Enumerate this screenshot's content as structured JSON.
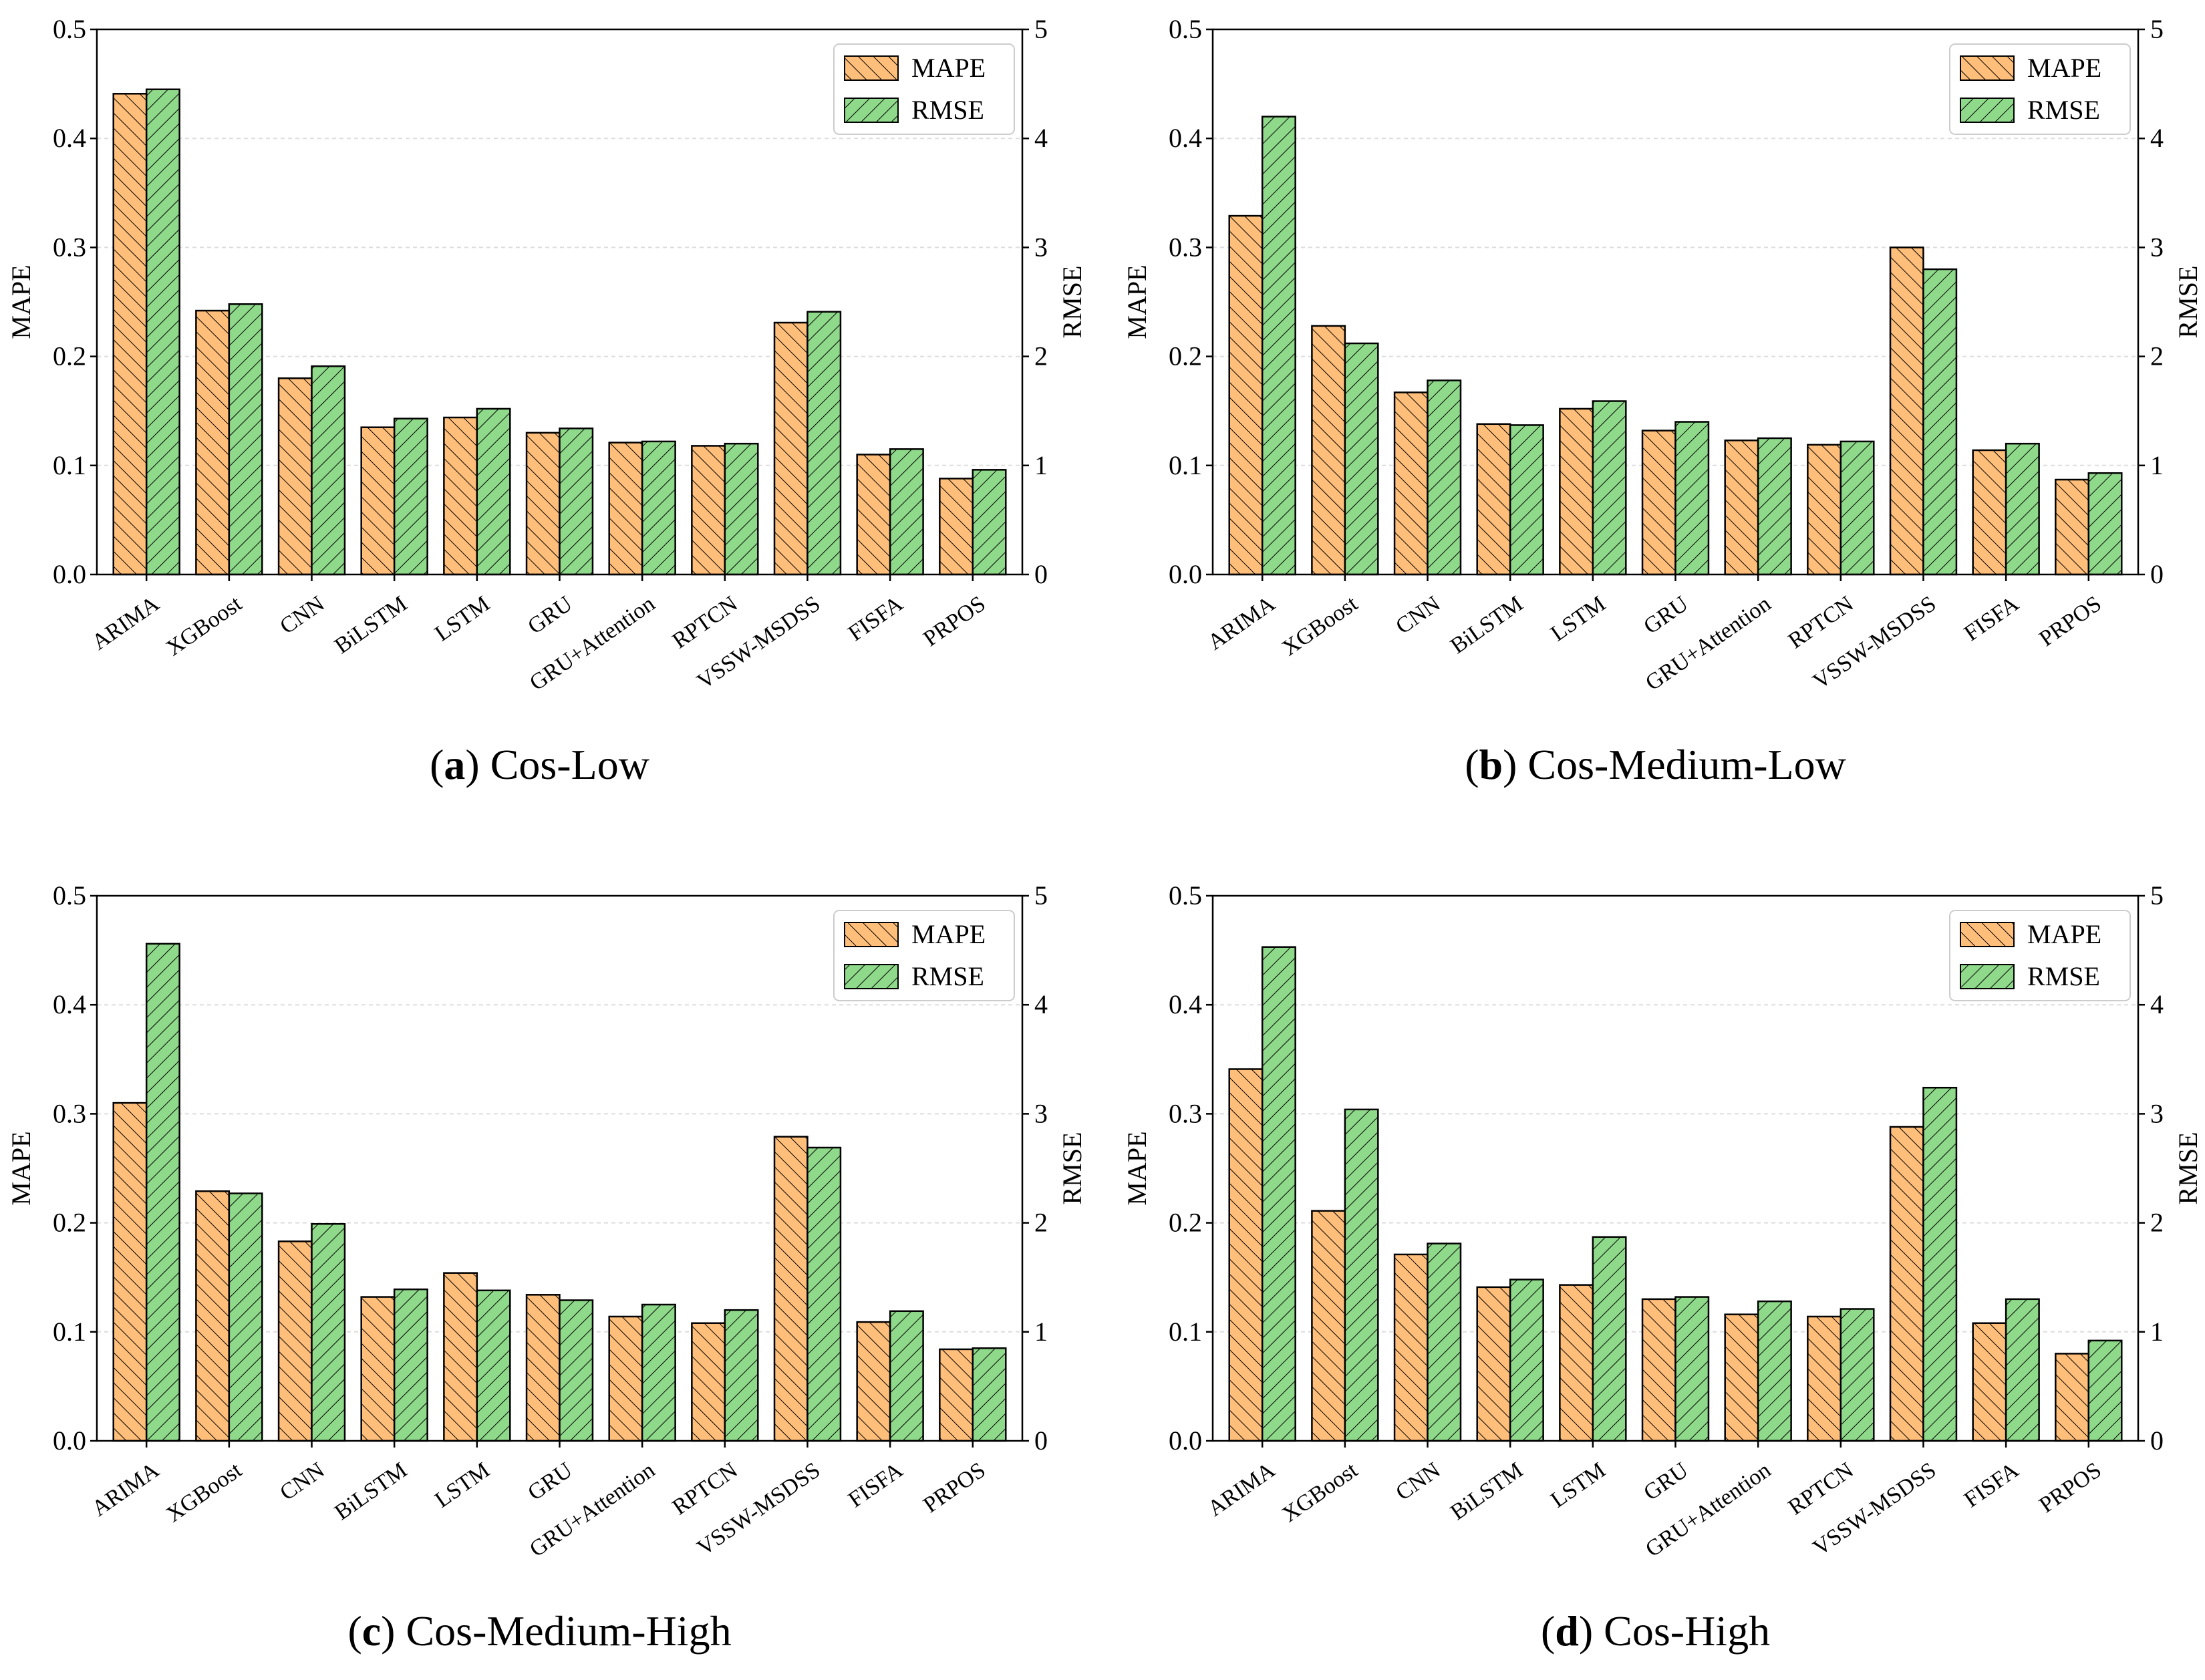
{
  "chart_data": [
    {
      "type": "bar",
      "caption_letter": "a",
      "caption_text": " Cos-Low",
      "ylabel": "MAPE",
      "y2label": "RMSE",
      "ylim": [
        0,
        0.5
      ],
      "y2lim": [
        0,
        5
      ],
      "yticks": [
        "0.0",
        "0.1",
        "0.2",
        "0.3",
        "0.4",
        "0.5"
      ],
      "y2ticks": [
        "0",
        "1",
        "2",
        "3",
        "4",
        "5"
      ],
      "grid": true,
      "legend_position": "top-right",
      "categories": [
        "ARIMA",
        "XGBoost",
        "CNN",
        "BiLSTM",
        "LSTM",
        "GRU",
        "GRU+Attention",
        "RPTCN",
        "VSSW-MSDSS",
        "FISFA",
        "PRPOS"
      ],
      "series": [
        {
          "name": "MAPE",
          "axis": "left",
          "color": "#FFBE7A",
          "hatch": "back",
          "values": [
            0.441,
            0.242,
            0.18,
            0.135,
            0.144,
            0.13,
            0.121,
            0.118,
            0.231,
            0.11,
            0.088
          ]
        },
        {
          "name": "RMSE",
          "axis": "right",
          "color": "#8FD98A",
          "hatch": "forward",
          "values": [
            4.45,
            2.48,
            1.91,
            1.43,
            1.52,
            1.34,
            1.22,
            1.2,
            2.41,
            1.15,
            0.96
          ]
        }
      ]
    },
    {
      "type": "bar",
      "caption_letter": "b",
      "caption_text": " Cos-Medium-Low",
      "ylabel": "MAPE",
      "y2label": "RMSE",
      "ylim": [
        0,
        0.5
      ],
      "y2lim": [
        0,
        5
      ],
      "yticks": [
        "0.0",
        "0.1",
        "0.2",
        "0.3",
        "0.4",
        "0.5"
      ],
      "y2ticks": [
        "0",
        "1",
        "2",
        "3",
        "4",
        "5"
      ],
      "grid": true,
      "legend_position": "top-right",
      "categories": [
        "ARIMA",
        "XGBoost",
        "CNN",
        "BiLSTM",
        "LSTM",
        "GRU",
        "GRU+Attention",
        "RPTCN",
        "VSSW-MSDSS",
        "FISFA",
        "PRPOS"
      ],
      "series": [
        {
          "name": "MAPE",
          "axis": "left",
          "color": "#FFBE7A",
          "hatch": "back",
          "values": [
            0.329,
            0.228,
            0.167,
            0.138,
            0.152,
            0.132,
            0.123,
            0.119,
            0.3,
            0.114,
            0.087
          ]
        },
        {
          "name": "RMSE",
          "axis": "right",
          "color": "#8FD98A",
          "hatch": "forward",
          "values": [
            4.2,
            2.12,
            1.78,
            1.37,
            1.59,
            1.4,
            1.25,
            1.22,
            2.8,
            1.2,
            0.93
          ]
        }
      ]
    },
    {
      "type": "bar",
      "caption_letter": "c",
      "caption_text": " Cos-Medium-High",
      "ylabel": "MAPE",
      "y2label": "RMSE",
      "ylim": [
        0,
        0.5
      ],
      "y2lim": [
        0,
        5
      ],
      "yticks": [
        "0.0",
        "0.1",
        "0.2",
        "0.3",
        "0.4",
        "0.5"
      ],
      "y2ticks": [
        "0",
        "1",
        "2",
        "3",
        "4",
        "5"
      ],
      "grid": true,
      "legend_position": "top-right",
      "categories": [
        "ARIMA",
        "XGBoost",
        "CNN",
        "BiLSTM",
        "LSTM",
        "GRU",
        "GRU+Attention",
        "RPTCN",
        "VSSW-MSDSS",
        "FISFA",
        "PRPOS"
      ],
      "series": [
        {
          "name": "MAPE",
          "axis": "left",
          "color": "#FFBE7A",
          "hatch": "back",
          "values": [
            0.31,
            0.229,
            0.183,
            0.132,
            0.154,
            0.134,
            0.114,
            0.108,
            0.279,
            0.109,
            0.084
          ]
        },
        {
          "name": "RMSE",
          "axis": "right",
          "color": "#8FD98A",
          "hatch": "forward",
          "values": [
            4.56,
            2.27,
            1.99,
            1.39,
            1.38,
            1.29,
            1.25,
            1.2,
            2.69,
            1.19,
            0.85
          ]
        }
      ]
    },
    {
      "type": "bar",
      "caption_letter": "d",
      "caption_text": " Cos-High",
      "ylabel": "MAPE",
      "y2label": "RMSE",
      "ylim": [
        0,
        0.5
      ],
      "y2lim": [
        0,
        5
      ],
      "yticks": [
        "0.0",
        "0.1",
        "0.2",
        "0.3",
        "0.4",
        "0.5"
      ],
      "y2ticks": [
        "0",
        "1",
        "2",
        "3",
        "4",
        "5"
      ],
      "grid": true,
      "legend_position": "top-right",
      "categories": [
        "ARIMA",
        "XGBoost",
        "CNN",
        "BiLSTM",
        "LSTM",
        "GRU",
        "GRU+Attention",
        "RPTCN",
        "VSSW-MSDSS",
        "FISFA",
        "PRPOS"
      ],
      "series": [
        {
          "name": "MAPE",
          "axis": "left",
          "color": "#FFBE7A",
          "hatch": "back",
          "values": [
            0.341,
            0.211,
            0.171,
            0.141,
            0.143,
            0.13,
            0.116,
            0.114,
            0.288,
            0.108,
            0.08
          ]
        },
        {
          "name": "RMSE",
          "axis": "right",
          "color": "#8FD98A",
          "hatch": "forward",
          "values": [
            4.53,
            3.04,
            1.81,
            1.48,
            1.87,
            1.32,
            1.28,
            1.21,
            3.24,
            1.3,
            0.92
          ]
        }
      ]
    }
  ]
}
